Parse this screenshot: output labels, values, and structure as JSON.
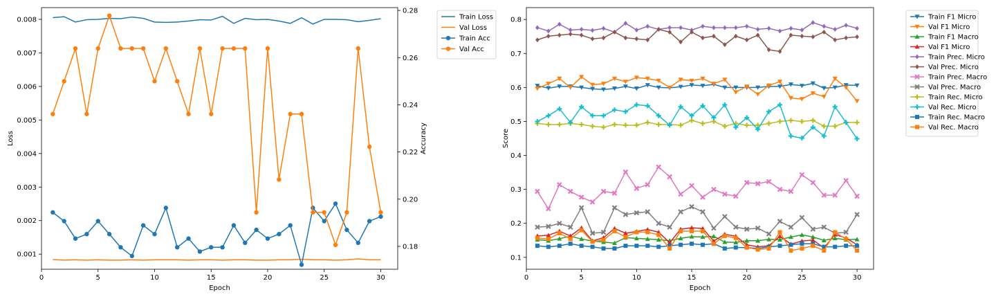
{
  "chart_data": [
    {
      "type": "line",
      "x": [
        1,
        2,
        3,
        4,
        5,
        6,
        7,
        8,
        9,
        10,
        11,
        12,
        13,
        14,
        15,
        16,
        17,
        18,
        19,
        20,
        21,
        22,
        23,
        24,
        25,
        26,
        27,
        28,
        29,
        30
      ],
      "xlabel": "Epoch",
      "ylabel": "Loss",
      "y2label": "Accuracy",
      "xlim": [
        0,
        31.5
      ],
      "ylim": [
        0.00055,
        0.00835
      ],
      "y2lim": [
        0.1703,
        0.2812
      ],
      "xticks": [
        0,
        5,
        10,
        15,
        20,
        25,
        30
      ],
      "yticks": [
        0.001,
        0.002,
        0.003,
        0.004,
        0.005,
        0.006,
        0.007,
        0.008
      ],
      "y2ticks": [
        0.18,
        0.2,
        0.22,
        0.24,
        0.26,
        0.28
      ],
      "grid": false,
      "legend_position": "outside-right",
      "series": [
        {
          "name": "Train Loss",
          "axis": "left",
          "color": "#1f77b4",
          "marker": "none",
          "values": [
            0.00805,
            0.00808,
            0.00792,
            0.00799,
            0.008,
            0.00803,
            0.00802,
            0.00807,
            0.00803,
            0.00792,
            0.00791,
            0.00792,
            0.00795,
            0.00799,
            0.00798,
            0.00809,
            0.00788,
            0.00803,
            0.00799,
            0.008,
            0.00795,
            0.00788,
            0.00805,
            0.00786,
            0.008,
            0.008,
            0.00799,
            0.00793,
            0.00797,
            0.00802
          ]
        },
        {
          "name": "Val Loss",
          "axis": "left",
          "color": "#ff7f0e",
          "marker": "none",
          "values": [
            0.00084,
            0.00082,
            0.00083,
            0.00082,
            0.00083,
            0.00082,
            0.00082,
            0.00083,
            0.00082,
            0.00083,
            0.00083,
            0.00083,
            0.00082,
            0.00083,
            0.00083,
            0.00082,
            0.00083,
            0.00083,
            0.00082,
            0.00082,
            0.00083,
            0.00083,
            0.00085,
            0.00083,
            0.00083,
            0.00082,
            0.00083,
            0.00086,
            0.00083,
            0.00083
          ]
        },
        {
          "name": "Train Acc",
          "axis": "right",
          "color": "#1f77b4",
          "marker": "circle",
          "values": [
            0.1944,
            0.1907,
            0.1833,
            0.1852,
            0.1907,
            0.1852,
            0.1796,
            0.1759,
            0.1889,
            0.1852,
            0.1963,
            0.1796,
            0.1833,
            0.1778,
            0.1796,
            0.1796,
            0.1889,
            0.1815,
            0.187,
            0.1833,
            0.1852,
            0.1889,
            0.1722,
            0.1963,
            0.1907,
            0.1981,
            0.187,
            0.1815,
            0.1907,
            0.1926
          ]
        },
        {
          "name": "Val Acc",
          "axis": "right",
          "color": "#ff7f0e",
          "marker": "circle",
          "values": [
            0.2361,
            0.25,
            0.2639,
            0.2361,
            0.2639,
            0.2778,
            0.2639,
            0.2639,
            0.2639,
            0.25,
            0.2639,
            0.25,
            0.2361,
            0.2639,
            0.2361,
            0.2639,
            0.2639,
            0.2639,
            0.1944,
            0.2639,
            0.2083,
            0.2361,
            0.2361,
            0.1944,
            0.1944,
            0.1806,
            0.1944,
            0.2639,
            0.2222,
            0.1944
          ]
        }
      ]
    },
    {
      "type": "line",
      "x": [
        1,
        2,
        3,
        4,
        5,
        6,
        7,
        8,
        9,
        10,
        11,
        12,
        13,
        14,
        15,
        16,
        17,
        18,
        19,
        20,
        21,
        22,
        23,
        24,
        25,
        26,
        27,
        28,
        29,
        30
      ],
      "xlabel": "Epoch",
      "ylabel": "Score",
      "xlim": [
        0,
        31.5
      ],
      "ylim": [
        0.065,
        0.835
      ],
      "xticks": [
        0,
        5,
        10,
        15,
        20,
        25,
        30
      ],
      "yticks": [
        0.1,
        0.2,
        0.3,
        0.4,
        0.5,
        0.6,
        0.7,
        0.8
      ],
      "grid": false,
      "legend_position": "outside-right",
      "series": [
        {
          "name": "Train F1 Micro",
          "color": "#1f77b4",
          "marker": "tri-down",
          "values": [
            0.605,
            0.598,
            0.603,
            0.603,
            0.6,
            0.596,
            0.594,
            0.597,
            0.603,
            0.597,
            0.607,
            0.6,
            0.599,
            0.602,
            0.607,
            0.605,
            0.609,
            0.6,
            0.6,
            0.6,
            0.6,
            0.603,
            0.603,
            0.609,
            0.605,
            0.612,
            0.598,
            0.6,
            0.607,
            0.606
          ]
        },
        {
          "name": "Val F1 Micro",
          "color": "#ff7f0e",
          "marker": "tri-down",
          "values": [
            0.597,
            0.611,
            0.626,
            0.6,
            0.631,
            0.608,
            0.611,
            0.626,
            0.617,
            0.629,
            0.626,
            0.62,
            0.6,
            0.623,
            0.62,
            0.626,
            0.611,
            0.623,
            0.586,
            0.603,
            0.58,
            0.606,
            0.617,
            0.569,
            0.566,
            0.583,
            0.573,
            0.626,
            0.6,
            0.56
          ]
        },
        {
          "name": "Train F1 Macro",
          "color": "#2ca02c",
          "marker": "tri-up",
          "values": [
            0.152,
            0.149,
            0.155,
            0.162,
            0.154,
            0.148,
            0.145,
            0.142,
            0.158,
            0.156,
            0.154,
            0.152,
            0.149,
            0.156,
            0.161,
            0.16,
            0.162,
            0.145,
            0.144,
            0.149,
            0.149,
            0.153,
            0.152,
            0.16,
            0.166,
            0.16,
            0.15,
            0.156,
            0.152,
            0.153
          ]
        },
        {
          "name": "Val F1 Micro",
          "color": "#d62728",
          "marker": "tri-up",
          "values": [
            0.163,
            0.165,
            0.177,
            0.163,
            0.187,
            0.148,
            0.158,
            0.185,
            0.171,
            0.176,
            0.182,
            0.174,
            0.143,
            0.183,
            0.187,
            0.185,
            0.148,
            0.168,
            0.162,
            0.137,
            0.131,
            0.134,
            0.162,
            0.139,
            0.148,
            0.151,
            0.128,
            0.167,
            0.157,
            0.137
          ]
        },
        {
          "name": "Train Prec. Micro",
          "color": "#9467bd",
          "marker": "diamond",
          "values": [
            0.776,
            0.766,
            0.786,
            0.769,
            0.771,
            0.768,
            0.774,
            0.763,
            0.789,
            0.769,
            0.78,
            0.771,
            0.776,
            0.776,
            0.769,
            0.78,
            0.776,
            0.776,
            0.776,
            0.78,
            0.771,
            0.774,
            0.766,
            0.774,
            0.769,
            0.791,
            0.78,
            0.771,
            0.783,
            0.774
          ]
        },
        {
          "name": "Val Prec. Micro",
          "color": "#8c564b",
          "marker": "diamond",
          "values": [
            0.74,
            0.751,
            0.754,
            0.757,
            0.754,
            0.743,
            0.746,
            0.763,
            0.746,
            0.743,
            0.74,
            0.771,
            0.763,
            0.734,
            0.763,
            0.746,
            0.751,
            0.726,
            0.751,
            0.74,
            0.754,
            0.711,
            0.706,
            0.754,
            0.751,
            0.749,
            0.763,
            0.74,
            0.746,
            0.749
          ]
        },
        {
          "name": "Train Prec. Macro",
          "color": "#e377c2",
          "marker": "x",
          "values": [
            0.294,
            0.243,
            0.314,
            0.294,
            0.277,
            0.263,
            0.294,
            0.289,
            0.351,
            0.303,
            0.314,
            0.366,
            0.337,
            0.286,
            0.311,
            0.277,
            0.3,
            0.286,
            0.28,
            0.32,
            0.317,
            0.323,
            0.3,
            0.294,
            0.343,
            0.32,
            0.283,
            0.283,
            0.326,
            0.28
          ]
        },
        {
          "name": "Val Prec. Macro",
          "color": "#7f7f7f",
          "marker": "x",
          "values": [
            0.189,
            0.191,
            0.2,
            0.189,
            0.246,
            0.171,
            0.174,
            0.246,
            0.226,
            0.231,
            0.234,
            0.2,
            0.189,
            0.234,
            0.249,
            0.234,
            0.186,
            0.22,
            0.189,
            0.183,
            0.186,
            0.169,
            0.206,
            0.189,
            0.217,
            0.183,
            0.189,
            0.171,
            0.174,
            0.226
          ]
        },
        {
          "name": "Train Rec. Micro",
          "color": "#bcbd22",
          "marker": "plus",
          "values": [
            0.494,
            0.491,
            0.491,
            0.494,
            0.491,
            0.486,
            0.483,
            0.491,
            0.489,
            0.489,
            0.497,
            0.491,
            0.491,
            0.489,
            0.503,
            0.494,
            0.5,
            0.486,
            0.494,
            0.489,
            0.489,
            0.494,
            0.5,
            0.503,
            0.5,
            0.503,
            0.486,
            0.486,
            0.497,
            0.497
          ]
        },
        {
          "name": "Val Rec. Micro",
          "color": "#17becf",
          "marker": "plus",
          "values": [
            0.5,
            0.517,
            0.537,
            0.497,
            0.543,
            0.517,
            0.517,
            0.534,
            0.529,
            0.549,
            0.546,
            0.517,
            0.489,
            0.543,
            0.517,
            0.546,
            0.511,
            0.549,
            0.483,
            0.511,
            0.477,
            0.529,
            0.549,
            0.457,
            0.451,
            0.483,
            0.457,
            0.543,
            0.497,
            0.449
          ]
        },
        {
          "name": "Train Rec. Macro",
          "color": "#1f77b4",
          "marker": "square",
          "values": [
            0.134,
            0.131,
            0.134,
            0.14,
            0.134,
            0.131,
            0.126,
            0.126,
            0.134,
            0.134,
            0.134,
            0.131,
            0.134,
            0.137,
            0.14,
            0.137,
            0.14,
            0.126,
            0.129,
            0.129,
            0.126,
            0.131,
            0.134,
            0.137,
            0.14,
            0.14,
            0.131,
            0.131,
            0.134,
            0.134
          ]
        },
        {
          "name": "Val Rec. Macro",
          "color": "#ff7f0e",
          "marker": "square",
          "values": [
            0.157,
            0.154,
            0.171,
            0.154,
            0.18,
            0.146,
            0.151,
            0.177,
            0.16,
            0.174,
            0.174,
            0.166,
            0.126,
            0.177,
            0.177,
            0.177,
            0.14,
            0.163,
            0.157,
            0.129,
            0.123,
            0.126,
            0.174,
            0.12,
            0.126,
            0.134,
            0.12,
            0.174,
            0.154,
            0.12
          ]
        }
      ]
    }
  ]
}
